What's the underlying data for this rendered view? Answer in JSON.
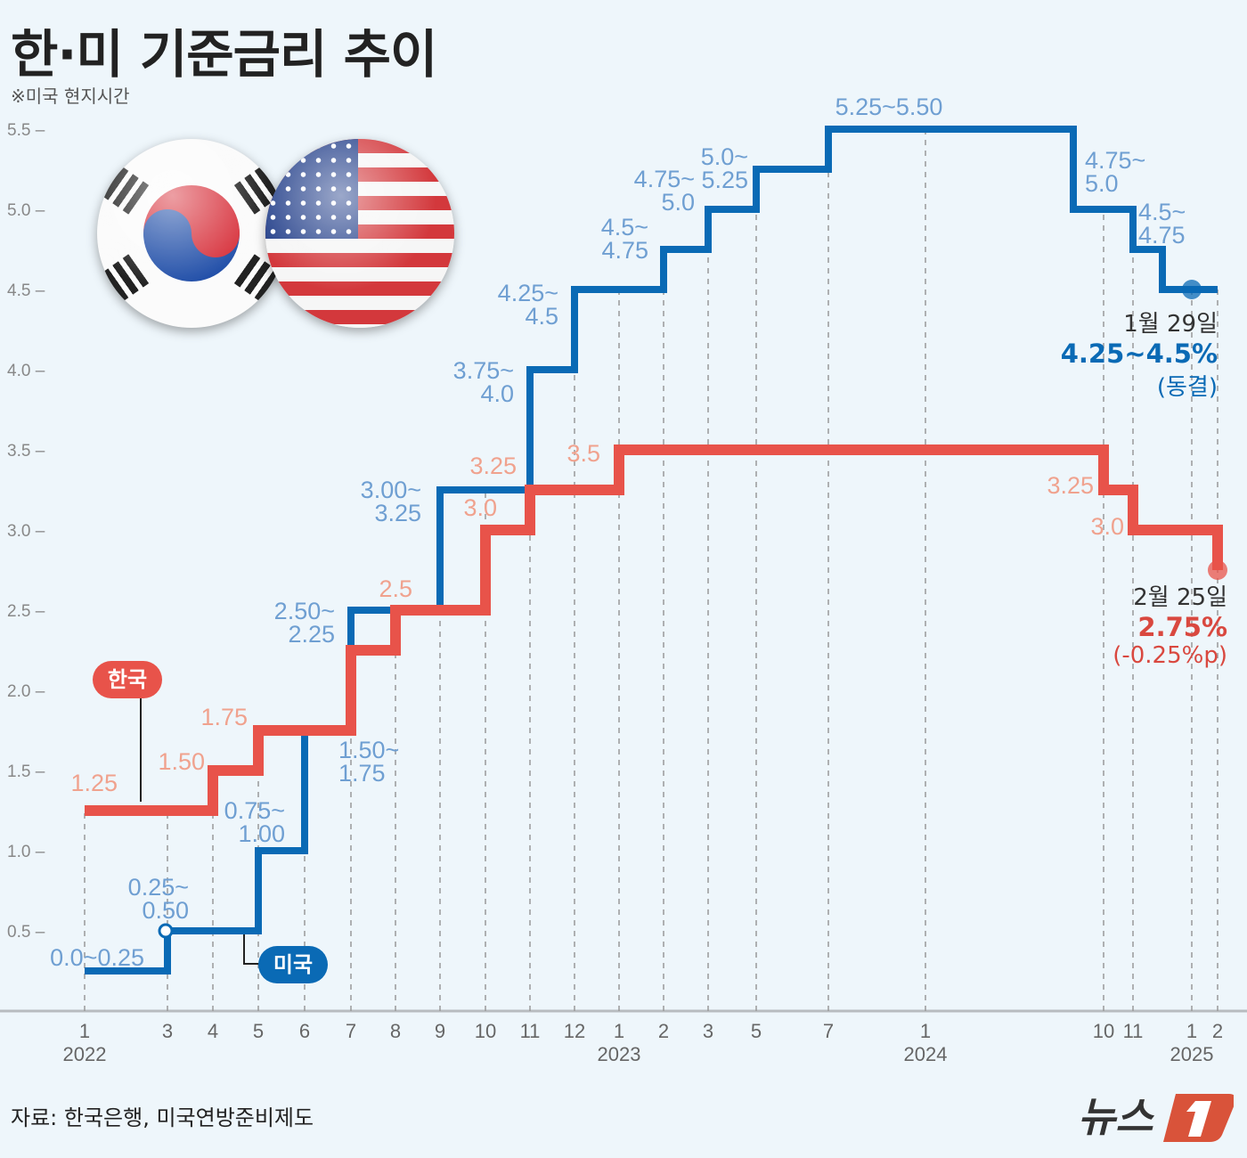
{
  "title": "한·미 기준금리 추이",
  "note": "※미국 현지시간",
  "source": "자료: 한국은행, 미국연방준비제도",
  "logo": "뉴스1",
  "legend": {
    "korea": "한국",
    "us": "미국"
  },
  "colors": {
    "us": "#0a6ab5",
    "korea": "#e8534a",
    "us_label": "#6f9fd2",
    "korea_label": "#f0a28e",
    "background": "#eef6fb"
  },
  "chart_data": {
    "type": "line",
    "step": true,
    "title": "한·미 기준금리 추이",
    "ylim": [
      0,
      5.5
    ],
    "y_ticks": [
      "5.5",
      "5.0",
      "4.5",
      "4.0",
      "3.5",
      "3.0",
      "2.5",
      "2.0",
      "1.5",
      "1.0",
      "0.5"
    ],
    "x_ticks": [
      {
        "date": "2022-01",
        "month": "1",
        "year": "2022"
      },
      {
        "date": "2022-03",
        "month": "3"
      },
      {
        "date": "2022-04",
        "month": "4"
      },
      {
        "date": "2022-05",
        "month": "5"
      },
      {
        "date": "2022-06",
        "month": "6"
      },
      {
        "date": "2022-07",
        "month": "7"
      },
      {
        "date": "2022-08",
        "month": "8"
      },
      {
        "date": "2022-09",
        "month": "9"
      },
      {
        "date": "2022-10",
        "month": "10"
      },
      {
        "date": "2022-11",
        "month": "11"
      },
      {
        "date": "2022-12",
        "month": "12"
      },
      {
        "date": "2023-01",
        "month": "1",
        "year": "2023"
      },
      {
        "date": "2023-02",
        "month": "2"
      },
      {
        "date": "2023-03",
        "month": "3"
      },
      {
        "date": "2023-05",
        "month": "5"
      },
      {
        "date": "2023-07",
        "month": "7"
      },
      {
        "date": "2024-01",
        "month": "1",
        "year": "2024"
      },
      {
        "date": "2024-10",
        "month": "10"
      },
      {
        "date": "2024-11",
        "month": "11"
      },
      {
        "date": "2025-01",
        "month": "1",
        "year": "2025"
      },
      {
        "date": "2025-02",
        "month": "2"
      }
    ],
    "series": [
      {
        "name": "미국",
        "key": "us",
        "steps": [
          [
            "2022-01",
            0.25
          ],
          [
            "2022-03",
            0.5
          ],
          [
            "2022-05",
            1.0
          ],
          [
            "2022-06",
            1.75
          ],
          [
            "2022-07",
            2.5
          ],
          [
            "2022-09",
            3.25
          ],
          [
            "2022-11",
            4.0
          ],
          [
            "2022-12",
            4.5
          ],
          [
            "2023-02",
            4.75
          ],
          [
            "2023-03",
            5.0
          ],
          [
            "2023-05",
            5.25
          ],
          [
            "2023-07",
            5.5
          ],
          [
            "2024-09",
            5.0
          ],
          [
            "2024-11",
            4.75
          ],
          [
            "2024-12",
            4.5
          ],
          [
            "2025-02",
            4.5
          ]
        ],
        "labels": [
          [
            "0.0~0.25"
          ],
          [
            "0.25~",
            "0.50"
          ],
          [
            "0.75~",
            "1.00"
          ],
          [
            "1.50~",
            "1.75"
          ],
          [
            "2.50~",
            "2.25"
          ],
          [
            "3.00~",
            "3.25"
          ],
          [
            "3.75~",
            "4.0"
          ],
          [
            "4.25~",
            "4.5"
          ],
          [
            "4.5~",
            "4.75"
          ],
          [
            "4.75~",
            "5.0"
          ],
          [
            "5.0~",
            "5.25"
          ],
          [
            "5.25~5.50"
          ],
          [
            "4.75~",
            "5.0"
          ],
          [
            "4.5~",
            "4.75"
          ]
        ],
        "latest": {
          "date": "2025-01",
          "value": 4.5,
          "date_label": "1월 29일",
          "value_label": "4.25~4.5%",
          "change_label": "(동결)"
        }
      },
      {
        "name": "한국",
        "key": "korea",
        "steps": [
          [
            "2022-01",
            1.25
          ],
          [
            "2022-04",
            1.5
          ],
          [
            "2022-05",
            1.75
          ],
          [
            "2022-07",
            2.25
          ],
          [
            "2022-08",
            2.5
          ],
          [
            "2022-10",
            3.0
          ],
          [
            "2022-11",
            3.25
          ],
          [
            "2023-01",
            3.5
          ],
          [
            "2024-10",
            3.25
          ],
          [
            "2024-11",
            3.0
          ],
          [
            "2025-02",
            2.75
          ]
        ],
        "labels": [
          [
            "1.25"
          ],
          [
            "1.50"
          ],
          [
            "1.75"
          ],
          [
            "2.5"
          ],
          [
            "3.0"
          ],
          [
            "3.25"
          ],
          [
            "3.5"
          ],
          [
            "3.25"
          ],
          [
            "3.0"
          ]
        ],
        "latest": {
          "date": "2025-02",
          "value": 2.75,
          "date_label": "2월 25일",
          "value_label": "2.75%",
          "change_label": "(-0.25%p)"
        }
      }
    ]
  }
}
